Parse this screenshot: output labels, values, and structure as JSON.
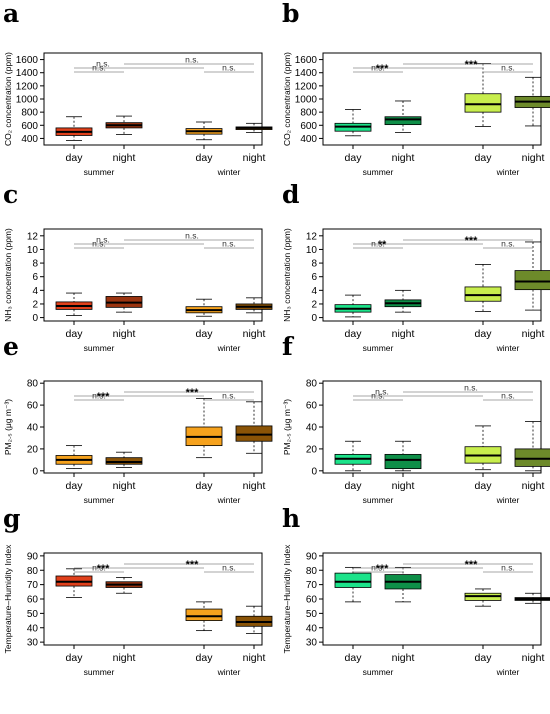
{
  "colors": {
    "summer_day_left": "#e0401b",
    "summer_night_left": "#9a3410",
    "winter_day_left": "#f6a21d",
    "winter_night_left": "#8a5306",
    "summer_day_right": "#1ce38a",
    "summer_night_right": "#0e8f48",
    "winter_day_right": "#c8ee4d",
    "winter_night_right": "#6d8a2a",
    "sig_line": "#8a8a8a"
  },
  "chart_data": [
    {
      "panel": "a",
      "type": "box",
      "ylabel": "CO₂ concentration (ppm)",
      "ylim": [
        300,
        1700
      ],
      "yticks": [
        "400",
        "600",
        "800",
        "1000",
        "1200",
        "1400",
        "1600"
      ],
      "groups": [
        "summer",
        "winter"
      ],
      "boxes": [
        {
          "label": "day",
          "group": "summer",
          "color_key": "summer_day_left",
          "min": 370,
          "q1": 445,
          "median": 500,
          "q3": 560,
          "max": 730
        },
        {
          "label": "night",
          "group": "summer",
          "color_key": "summer_night_left",
          "min": 460,
          "q1": 560,
          "median": 600,
          "q3": 640,
          "max": 740
        },
        {
          "label": "day",
          "group": "winter",
          "color_key": "winter_day_left",
          "min": 380,
          "q1": 465,
          "median": 510,
          "q3": 550,
          "max": 650
        },
        {
          "label": "night",
          "group": "winter",
          "color_key": "winter_night_left",
          "min": 490,
          "q1": 535,
          "median": 560,
          "q3": 575,
          "max": 630
        }
      ],
      "significance": [
        {
          "a": 0,
          "b": 2,
          "level": 1,
          "text": "n.s."
        },
        {
          "a": 0,
          "b": 1,
          "level": 0,
          "text": "n.s."
        },
        {
          "a": 2,
          "b": 3,
          "level": 0,
          "text": "n.s."
        },
        {
          "a": 1,
          "b": 3,
          "level": 2,
          "text": "n.s."
        }
      ]
    },
    {
      "panel": "b",
      "type": "box",
      "ylabel": "CO₂ concentration (ppm)",
      "ylim": [
        300,
        1700
      ],
      "yticks": [
        "400",
        "600",
        "800",
        "1000",
        "1200",
        "1400",
        "1600"
      ],
      "groups": [
        "summer",
        "winter"
      ],
      "boxes": [
        {
          "label": "day",
          "group": "summer",
          "color_key": "summer_day_right",
          "min": 440,
          "q1": 510,
          "median": 580,
          "q3": 630,
          "max": 840
        },
        {
          "label": "night",
          "group": "summer",
          "color_key": "summer_night_right",
          "min": 490,
          "q1": 610,
          "median": 690,
          "q3": 730,
          "max": 970
        },
        {
          "label": "day",
          "group": "winter",
          "color_key": "winter_day_right",
          "min": 580,
          "q1": 800,
          "median": 920,
          "q3": 1080,
          "max": 1540
        },
        {
          "label": "night",
          "group": "winter",
          "color_key": "winter_night_right",
          "min": 590,
          "q1": 870,
          "median": 960,
          "q3": 1040,
          "max": 1330
        }
      ],
      "significance": [
        {
          "a": 0,
          "b": 2,
          "level": 1,
          "text": "***"
        },
        {
          "a": 0,
          "b": 1,
          "level": 0,
          "text": "n.s."
        },
        {
          "a": 2,
          "b": 3,
          "level": 0,
          "text": "n.s."
        },
        {
          "a": 1,
          "b": 3,
          "level": 2,
          "text": "***"
        }
      ]
    },
    {
      "panel": "c",
      "type": "box",
      "ylabel": "NH₃ concentration (ppm)",
      "ylim": [
        -0.5,
        13
      ],
      "yticks": [
        "0",
        "2",
        "4",
        "6",
        "8",
        "10",
        "12"
      ],
      "groups": [
        "summer",
        "winter"
      ],
      "boxes": [
        {
          "label": "day",
          "group": "summer",
          "color_key": "summer_day_left",
          "min": 0.3,
          "q1": 1.2,
          "median": 1.7,
          "q3": 2.3,
          "max": 3.6
        },
        {
          "label": "night",
          "group": "summer",
          "color_key": "summer_night_left",
          "min": 0.8,
          "q1": 1.5,
          "median": 2.2,
          "q3": 3.1,
          "max": 3.6
        },
        {
          "label": "day",
          "group": "winter",
          "color_key": "winter_day_left",
          "min": 0.2,
          "q1": 0.7,
          "median": 1.1,
          "q3": 1.6,
          "max": 2.7
        },
        {
          "label": "night",
          "group": "winter",
          "color_key": "winter_night_left",
          "min": 0.7,
          "q1": 1.2,
          "median": 1.6,
          "q3": 2.0,
          "max": 2.9
        }
      ],
      "significance": [
        {
          "a": 0,
          "b": 2,
          "level": 1,
          "text": "n.s."
        },
        {
          "a": 0,
          "b": 1,
          "level": 0,
          "text": "n.s."
        },
        {
          "a": 2,
          "b": 3,
          "level": 0,
          "text": "n.s."
        },
        {
          "a": 1,
          "b": 3,
          "level": 2,
          "text": "n.s."
        }
      ]
    },
    {
      "panel": "d",
      "type": "box",
      "ylabel": "NH₃ concentration (ppm)",
      "ylim": [
        -0.5,
        13
      ],
      "yticks": [
        "0",
        "2",
        "4",
        "6",
        "8",
        "10",
        "12"
      ],
      "groups": [
        "summer",
        "winter"
      ],
      "boxes": [
        {
          "label": "day",
          "group": "summer",
          "color_key": "summer_day_right",
          "min": 0.1,
          "q1": 0.8,
          "median": 1.3,
          "q3": 1.9,
          "max": 3.3
        },
        {
          "label": "night",
          "group": "summer",
          "color_key": "summer_night_right",
          "min": 0.8,
          "q1": 1.6,
          "median": 2.1,
          "q3": 2.6,
          "max": 4.0
        },
        {
          "label": "day",
          "group": "winter",
          "color_key": "winter_day_right",
          "min": 0.9,
          "q1": 2.4,
          "median": 3.3,
          "q3": 4.5,
          "max": 7.8
        },
        {
          "label": "night",
          "group": "winter",
          "color_key": "winter_night_right",
          "min": 1.1,
          "q1": 4.1,
          "median": 5.3,
          "q3": 6.9,
          "max": 11.1
        }
      ],
      "significance": [
        {
          "a": 0,
          "b": 2,
          "level": 1,
          "text": "**"
        },
        {
          "a": 0,
          "b": 1,
          "level": 0,
          "text": "n.s."
        },
        {
          "a": 2,
          "b": 3,
          "level": 0,
          "text": "n.s."
        },
        {
          "a": 1,
          "b": 3,
          "level": 2,
          "text": "***"
        }
      ]
    },
    {
      "panel": "e",
      "type": "box",
      "ylabel": "PM₂.₅ (μg m⁻³)",
      "ylim": [
        -2,
        82
      ],
      "yticks": [
        "0",
        "20",
        "40",
        "60",
        "80"
      ],
      "groups": [
        "summer",
        "winter"
      ],
      "boxes": [
        {
          "label": "day",
          "group": "summer",
          "color_key": "winter_day_left",
          "min": 2,
          "q1": 6,
          "median": 10,
          "q3": 14,
          "max": 23
        },
        {
          "label": "night",
          "group": "summer",
          "color_key": "winter_night_left",
          "min": 3,
          "q1": 6,
          "median": 8,
          "q3": 12,
          "max": 17
        },
        {
          "label": "day",
          "group": "winter",
          "color_key": "winter_day_left",
          "min": 12,
          "q1": 23,
          "median": 31,
          "q3": 40,
          "max": 66
        },
        {
          "label": "night",
          "group": "winter",
          "color_key": "winter_night_left",
          "min": 16,
          "q1": 27,
          "median": 33,
          "q3": 41,
          "max": 63
        }
      ],
      "significance": [
        {
          "a": 0,
          "b": 2,
          "level": 1,
          "text": "***"
        },
        {
          "a": 0,
          "b": 1,
          "level": 0,
          "text": "n.s."
        },
        {
          "a": 2,
          "b": 3,
          "level": 0,
          "text": "n.s."
        },
        {
          "a": 1,
          "b": 3,
          "level": 2,
          "text": "***"
        }
      ]
    },
    {
      "panel": "f",
      "type": "box",
      "ylabel": "PM₂.₅ (μg m⁻³)",
      "ylim": [
        -2,
        82
      ],
      "yticks": [
        "0",
        "20",
        "40",
        "60",
        "80"
      ],
      "groups": [
        "summer",
        "winter"
      ],
      "boxes": [
        {
          "label": "day",
          "group": "summer",
          "color_key": "summer_day_right",
          "min": 0,
          "q1": 6,
          "median": 11,
          "q3": 15,
          "max": 27
        },
        {
          "label": "night",
          "group": "summer",
          "color_key": "summer_night_right",
          "min": 0,
          "q1": 2,
          "median": 10,
          "q3": 15,
          "max": 27
        },
        {
          "label": "day",
          "group": "winter",
          "color_key": "winter_day_right",
          "min": 1,
          "q1": 7,
          "median": 14,
          "q3": 22,
          "max": 41
        },
        {
          "label": "night",
          "group": "winter",
          "color_key": "winter_night_right",
          "min": 0,
          "q1": 4,
          "median": 11,
          "q3": 20,
          "max": 45
        }
      ],
      "significance": [
        {
          "a": 0,
          "b": 2,
          "level": 1,
          "text": "n.s."
        },
        {
          "a": 0,
          "b": 1,
          "level": 0,
          "text": "n.s."
        },
        {
          "a": 2,
          "b": 3,
          "level": 0,
          "text": "n.s."
        },
        {
          "a": 1,
          "b": 3,
          "level": 2,
          "text": "n.s."
        }
      ]
    },
    {
      "panel": "g",
      "type": "box",
      "ylabel": "Temperature–Humidity Index",
      "ylim": [
        28,
        92
      ],
      "yticks": [
        "30",
        "40",
        "50",
        "60",
        "70",
        "80",
        "90"
      ],
      "groups": [
        "summer",
        "winter"
      ],
      "boxes": [
        {
          "label": "day",
          "group": "summer",
          "color_key": "summer_day_left",
          "min": 61,
          "q1": 69,
          "median": 72,
          "q3": 76,
          "max": 81
        },
        {
          "label": "night",
          "group": "summer",
          "color_key": "summer_night_left",
          "min": 64,
          "q1": 68,
          "median": 70,
          "q3": 72,
          "max": 75
        },
        {
          "label": "day",
          "group": "winter",
          "color_key": "winter_day_left",
          "min": 38,
          "q1": 45,
          "median": 48,
          "q3": 53,
          "max": 58
        },
        {
          "label": "night",
          "group": "winter",
          "color_key": "winter_night_left",
          "min": 36,
          "q1": 41,
          "median": 44,
          "q3": 48,
          "max": 55
        }
      ],
      "significance": [
        {
          "a": 0,
          "b": 2,
          "level": 1,
          "text": "***"
        },
        {
          "a": 0,
          "b": 1,
          "level": 0,
          "text": "n.s."
        },
        {
          "a": 2,
          "b": 3,
          "level": 0,
          "text": "n.s."
        },
        {
          "a": 1,
          "b": 3,
          "level": 2,
          "text": "***"
        }
      ]
    },
    {
      "panel": "h",
      "type": "box",
      "ylabel": "Temperature–Humidity Index",
      "ylim": [
        28,
        92
      ],
      "yticks": [
        "30",
        "40",
        "50",
        "60",
        "70",
        "80",
        "90"
      ],
      "groups": [
        "summer",
        "winter"
      ],
      "boxes": [
        {
          "label": "day",
          "group": "summer",
          "color_key": "summer_day_right",
          "min": 58,
          "q1": 68,
          "median": 72,
          "q3": 78,
          "max": 82
        },
        {
          "label": "night",
          "group": "summer",
          "color_key": "summer_night_right",
          "min": 58,
          "q1": 67,
          "median": 72,
          "q3": 77,
          "max": 82
        },
        {
          "label": "day",
          "group": "winter",
          "color_key": "winter_day_right",
          "min": 55,
          "q1": 59,
          "median": 62,
          "q3": 64,
          "max": 67
        },
        {
          "label": "night",
          "group": "winter",
          "color_key": "winter_night_right",
          "min": 57,
          "q1": 59,
          "median": 60,
          "q3": 61,
          "max": 64
        }
      ],
      "significance": [
        {
          "a": 0,
          "b": 2,
          "level": 1,
          "text": "***"
        },
        {
          "a": 0,
          "b": 1,
          "level": 0,
          "text": "n.s."
        },
        {
          "a": 2,
          "b": 3,
          "level": 0,
          "text": "n.s."
        },
        {
          "a": 1,
          "b": 3,
          "level": 2,
          "text": "***"
        }
      ]
    }
  ]
}
